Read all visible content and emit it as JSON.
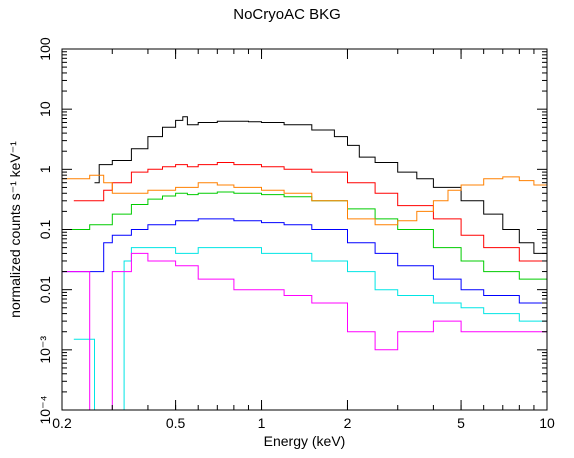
{
  "chart_data": {
    "type": "line",
    "title": "NoCryoAC BKG",
    "xlabel": "Energy (keV)",
    "ylabel": "normalized counts s⁻¹ keV⁻¹",
    "xscale": "log",
    "yscale": "log",
    "xlim": [
      0.2,
      10
    ],
    "ylim": [
      0.0001,
      100
    ],
    "grid": false,
    "legend": "none",
    "x_ticks": [
      {
        "value": 0.2,
        "label": "0.2"
      },
      {
        "value": 0.5,
        "label": "0.5"
      },
      {
        "value": 1,
        "label": "1"
      },
      {
        "value": 2,
        "label": "2"
      },
      {
        "value": 5,
        "label": "5"
      },
      {
        "value": 10,
        "label": "10"
      }
    ],
    "y_ticks": [
      {
        "value": 100,
        "label": "100"
      },
      {
        "value": 10,
        "label": "10"
      },
      {
        "value": 1,
        "label": "1"
      },
      {
        "value": 0.1,
        "label": "0.1"
      },
      {
        "value": 0.01,
        "label": "0.01"
      },
      {
        "value": 0.001,
        "label": "10⁻³"
      },
      {
        "value": 0.0001,
        "label": "10⁻⁴"
      }
    ],
    "series": [
      {
        "color": "#000000",
        "x": [
          0.26,
          0.27,
          0.3,
          0.35,
          0.4,
          0.45,
          0.5,
          0.53,
          0.55,
          0.6,
          0.7,
          0.8,
          0.9,
          1.0,
          1.2,
          1.5,
          1.8,
          2.0,
          2.2,
          2.5,
          3,
          3.5,
          4,
          5,
          6,
          7,
          8,
          9,
          10
        ],
        "y": [
          0.6,
          1.2,
          1.4,
          2.2,
          3.5,
          5,
          6.5,
          7.5,
          5.5,
          6,
          6.3,
          6.3,
          6.2,
          6,
          5.5,
          4.5,
          3.5,
          2.5,
          1.6,
          1.3,
          0.9,
          0.7,
          0.5,
          0.3,
          0.18,
          0.1,
          0.06,
          0.04,
          0.03
        ]
      },
      {
        "color": "#ff0000",
        "x": [
          0.22,
          0.26,
          0.28,
          0.3,
          0.35,
          0.4,
          0.45,
          0.5,
          0.55,
          0.6,
          0.7,
          0.8,
          1.0,
          1.2,
          1.5,
          2.0,
          2.5,
          3,
          4,
          5,
          6,
          8,
          10
        ],
        "y": [
          0.3,
          0.3,
          0.45,
          0.6,
          0.9,
          1.0,
          1.1,
          1.2,
          1.1,
          1.2,
          1.3,
          1.2,
          1.1,
          1.0,
          0.9,
          0.6,
          0.4,
          0.25,
          0.15,
          0.08,
          0.05,
          0.03,
          0.02
        ]
      },
      {
        "color": "#00cc00",
        "x": [
          0.2,
          0.25,
          0.3,
          0.35,
          0.4,
          0.45,
          0.5,
          0.55,
          0.6,
          0.7,
          0.8,
          1.0,
          1.2,
          1.5,
          2.0,
          2.5,
          3,
          4,
          5,
          6,
          8,
          10
        ],
        "y": [
          0.1,
          0.12,
          0.18,
          0.26,
          0.32,
          0.36,
          0.4,
          0.38,
          0.4,
          0.42,
          0.4,
          0.38,
          0.35,
          0.3,
          0.22,
          0.15,
          0.1,
          0.05,
          0.03,
          0.02,
          0.015,
          0.01
        ]
      },
      {
        "color": "#ff8000",
        "x": [
          0.2,
          0.22,
          0.25,
          0.28,
          0.3,
          0.35,
          0.4,
          0.5,
          0.6,
          0.7,
          0.8,
          1.0,
          1.2,
          1.5,
          2.0,
          2.5,
          3,
          3.5,
          4,
          4.5,
          5,
          6,
          7,
          8,
          9,
          10
        ],
        "y": [
          0.7,
          0.7,
          0.8,
          0.6,
          0.4,
          0.4,
          0.45,
          0.5,
          0.6,
          0.55,
          0.5,
          0.45,
          0.4,
          0.3,
          0.15,
          0.12,
          0.14,
          0.2,
          0.3,
          0.45,
          0.55,
          0.7,
          0.75,
          0.65,
          0.55,
          0.45
        ]
      },
      {
        "color": "#0000ff",
        "x": [
          0.2,
          0.25,
          0.28,
          0.3,
          0.35,
          0.4,
          0.5,
          0.6,
          0.8,
          1.0,
          1.2,
          1.5,
          2.0,
          2.5,
          3,
          4,
          5,
          6,
          8,
          10
        ],
        "y": [
          0.02,
          0.02,
          0.06,
          0.08,
          0.1,
          0.12,
          0.14,
          0.15,
          0.14,
          0.13,
          0.12,
          0.1,
          0.06,
          0.04,
          0.025,
          0.015,
          0.01,
          0.008,
          0.006,
          0.005
        ]
      },
      {
        "color": "#00e5e5",
        "x": [
          0.22,
          0.24,
          0.26,
          0.3,
          0.33,
          0.35,
          0.4,
          0.5,
          0.6,
          0.8,
          1.0,
          1.2,
          1.5,
          2.0,
          2.5,
          3,
          4,
          5,
          6,
          8,
          10
        ],
        "y": [
          0.0015,
          0.0015,
          0.0001,
          0.0001,
          0.03,
          0.05,
          0.05,
          0.04,
          0.05,
          0.05,
          0.04,
          0.04,
          0.03,
          0.02,
          0.01,
          0.008,
          0.006,
          0.005,
          0.004,
          0.003,
          0.003
        ]
      },
      {
        "color": "#ff00ff",
        "x": [
          0.2,
          0.22,
          0.25,
          0.3,
          0.35,
          0.4,
          0.5,
          0.6,
          0.8,
          1.0,
          1.2,
          1.5,
          2.0,
          2.5,
          3,
          4,
          5,
          6,
          8,
          10
        ],
        "y": [
          0.02,
          0.02,
          0.0001,
          0.02,
          0.04,
          0.03,
          0.025,
          0.015,
          0.01,
          0.01,
          0.008,
          0.006,
          0.002,
          0.001,
          0.002,
          0.003,
          0.002,
          0.002,
          0.002,
          0.002
        ]
      }
    ]
  }
}
